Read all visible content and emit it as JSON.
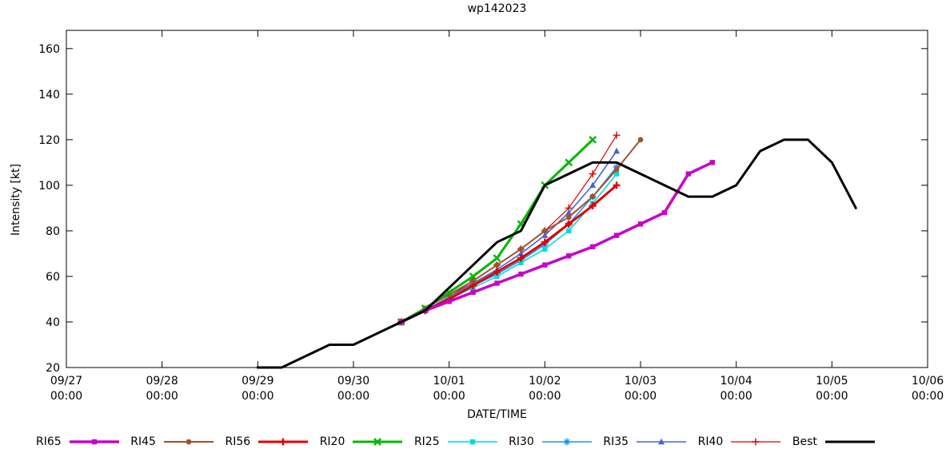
{
  "title": "wp142023",
  "axes": {
    "x_label": "DATE/TIME",
    "y_label": "Intensity [kt]",
    "x_range_hours": [
      0,
      216
    ],
    "y_range": [
      20,
      168
    ],
    "x_ticks": [
      {
        "hour": 0,
        "day": "09/27",
        "time": "00:00"
      },
      {
        "hour": 24,
        "day": "09/28",
        "time": "00:00"
      },
      {
        "hour": 48,
        "day": "09/29",
        "time": "00:00"
      },
      {
        "hour": 72,
        "day": "09/30",
        "time": "00:00"
      },
      {
        "hour": 96,
        "day": "10/01",
        "time": "00:00"
      },
      {
        "hour": 120,
        "day": "10/02",
        "time": "00:00"
      },
      {
        "hour": 144,
        "day": "10/03",
        "time": "00:00"
      },
      {
        "hour": 168,
        "day": "10/04",
        "time": "00:00"
      },
      {
        "hour": 192,
        "day": "10/05",
        "time": "00:00"
      },
      {
        "hour": 216,
        "day": "10/06",
        "time": "00:00"
      }
    ],
    "y_ticks": [
      20,
      40,
      60,
      80,
      100,
      120,
      140,
      160
    ]
  },
  "chart_data": {
    "type": "line",
    "title": "wp142023",
    "xlabel": "DATE/TIME",
    "ylabel": "Intensity [kt]",
    "x_unit": "hours since 09/27 00:00",
    "ylim": [
      20,
      168
    ],
    "legend_position": "bottom",
    "series": [
      {
        "name": "RI65",
        "color": "#c800c8",
        "marker": "square",
        "width": 3.5,
        "start_hour": 84,
        "step_hours": 6,
        "values": [
          40,
          45,
          49,
          53,
          57,
          61,
          65,
          69,
          73,
          78,
          83,
          88,
          105,
          110
        ]
      },
      {
        "name": "RI45",
        "color": "#a0522d",
        "marker": "circle",
        "width": 2.0,
        "start_hour": 84,
        "step_hours": 6,
        "values": [
          40,
          46,
          52,
          58,
          65,
          72,
          80,
          86,
          95,
          107,
          120
        ]
      },
      {
        "name": "RI56",
        "color": "#e00000",
        "marker": "plus",
        "width": 3.0,
        "start_hour": 84,
        "step_hours": 6,
        "values": [
          40,
          45,
          50,
          56,
          62,
          68,
          75,
          83,
          91,
          100
        ]
      },
      {
        "name": "RI20",
        "color": "#00b800",
        "marker": "x",
        "width": 3.0,
        "start_hour": 84,
        "step_hours": 6,
        "values": [
          40,
          46,
          53,
          60,
          68,
          83,
          100,
          110,
          120
        ]
      },
      {
        "name": "RI25",
        "color": "#00dcdc",
        "marker": "square",
        "width": 1.6,
        "start_hour": 84,
        "step_hours": 6,
        "values": [
          40,
          45,
          50,
          55,
          60,
          66,
          72,
          80,
          92,
          105
        ]
      },
      {
        "name": "RI30",
        "color": "#1e90ff",
        "marker": "asterisk",
        "width": 1.6,
        "start_hour": 84,
        "step_hours": 6,
        "values": [
          40,
          45,
          50,
          56,
          61,
          67,
          74,
          83,
          95,
          108
        ]
      },
      {
        "name": "RI35",
        "color": "#4666d1",
        "marker": "triangle",
        "width": 1.6,
        "start_hour": 84,
        "step_hours": 6,
        "values": [
          40,
          45,
          51,
          57,
          63,
          70,
          78,
          88,
          100,
          115
        ]
      },
      {
        "name": "RI40",
        "color": "#dc0000",
        "marker": "plus",
        "width": 1.2,
        "start_hour": 84,
        "step_hours": 6,
        "values": [
          40,
          45,
          51,
          58,
          65,
          72,
          80,
          90,
          105,
          122
        ]
      },
      {
        "name": "Best",
        "color": "#000000",
        "marker": "none",
        "width": 3.0,
        "start_hour": 48,
        "step_hours": 6,
        "values": [
          20,
          20,
          25,
          30,
          30,
          35,
          40,
          45,
          55,
          65,
          75,
          80,
          100,
          105,
          110,
          110,
          105,
          100,
          95,
          95,
          100,
          115,
          120,
          120,
          110,
          90
        ]
      }
    ]
  }
}
